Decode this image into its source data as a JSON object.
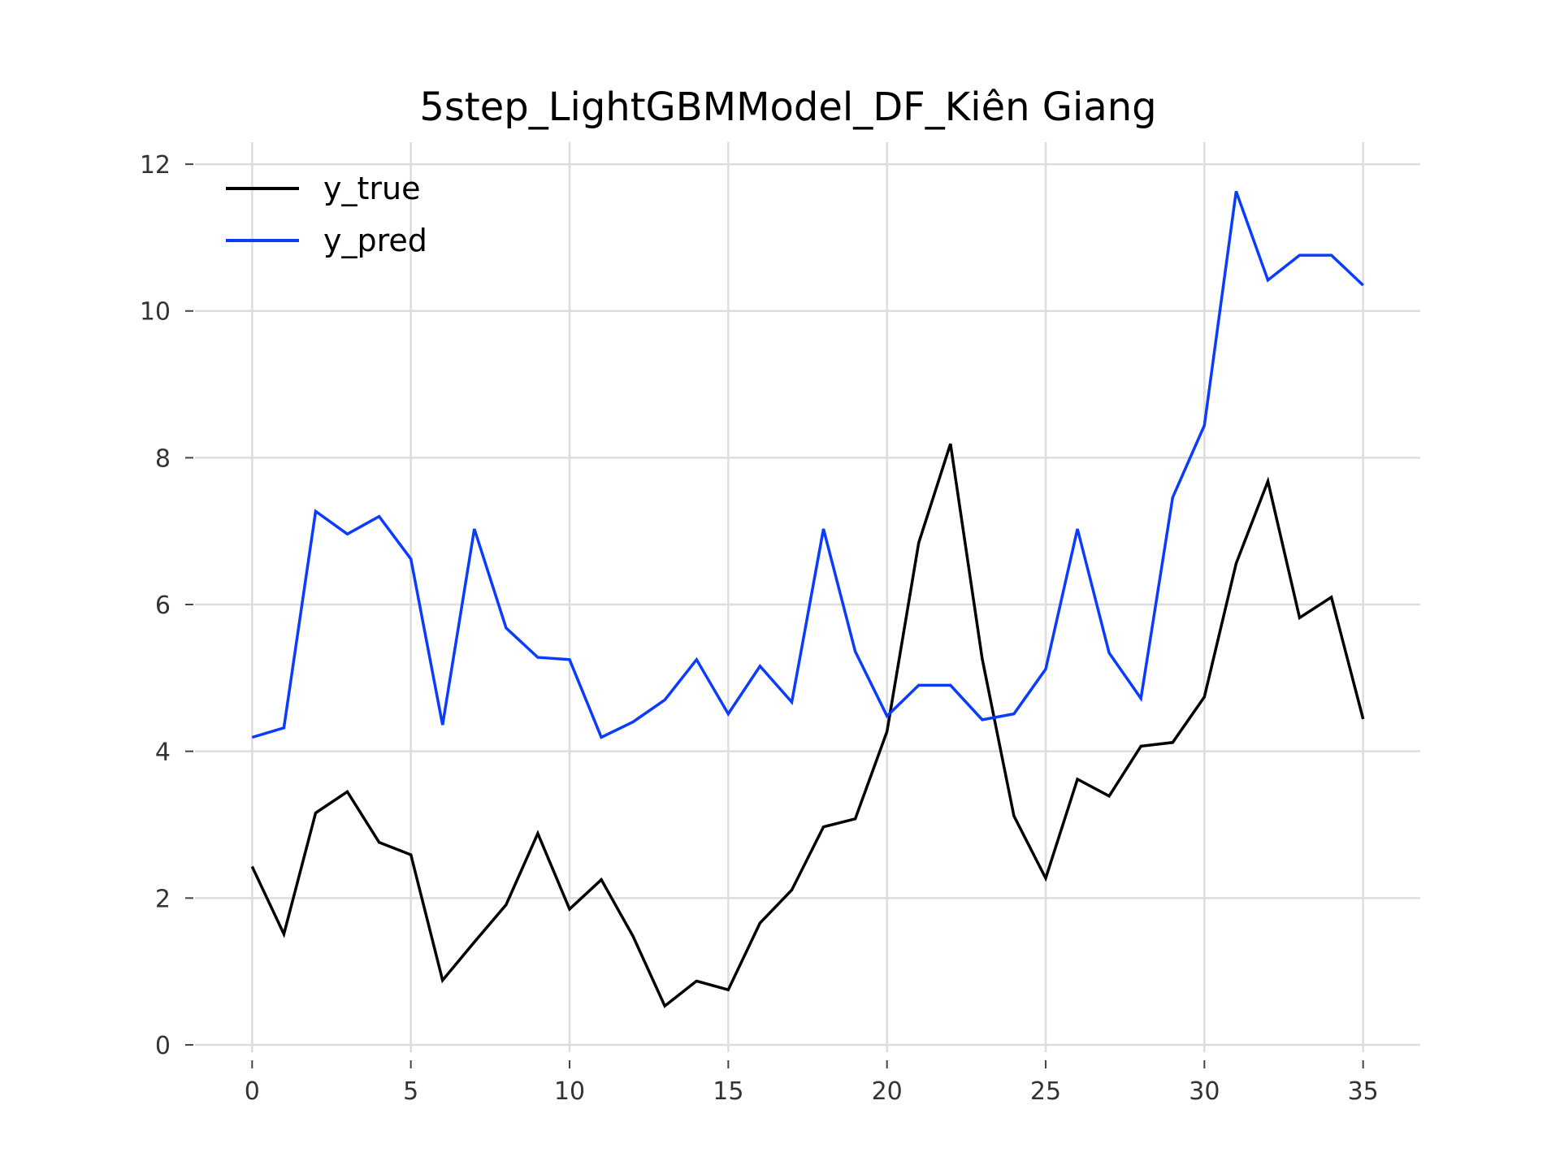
{
  "chart_data": {
    "type": "line",
    "title": "5step_LightGBMModel_DF_Kiên Giang",
    "xlabel": "",
    "ylabel": "",
    "xlim": [
      -1.8,
      36.8
    ],
    "ylim": [
      -0.1,
      12.3
    ],
    "xticks": [
      0,
      5,
      10,
      15,
      20,
      25,
      30,
      35
    ],
    "yticks": [
      0,
      2,
      4,
      6,
      8,
      10,
      12
    ],
    "grid": true,
    "legend_position": "top-left",
    "x": [
      0,
      1,
      2,
      3,
      4,
      5,
      6,
      7,
      8,
      9,
      10,
      11,
      12,
      13,
      14,
      15,
      16,
      17,
      18,
      19,
      20,
      21,
      22,
      23,
      24,
      25,
      26,
      27,
      28,
      29,
      30,
      31,
      32,
      33,
      34,
      35
    ],
    "series": [
      {
        "name": "y_true",
        "color": "#000000",
        "values": [
          2.43,
          1.51,
          3.16,
          3.45,
          2.76,
          2.59,
          0.88,
          1.4,
          1.91,
          2.88,
          1.85,
          2.25,
          1.48,
          0.53,
          0.87,
          0.75,
          1.66,
          2.11,
          2.97,
          3.08,
          4.27,
          6.84,
          8.19,
          5.26,
          3.12,
          2.27,
          3.62,
          3.39,
          4.07,
          4.12,
          4.74,
          6.56,
          7.68,
          5.82,
          6.1,
          4.44
        ]
      },
      {
        "name": "y_pred",
        "color": "#0a3cff",
        "values": [
          4.19,
          4.32,
          7.27,
          6.96,
          7.2,
          6.62,
          4.36,
          7.03,
          5.68,
          5.28,
          5.25,
          4.19,
          4.4,
          4.7,
          5.25,
          4.51,
          5.16,
          4.67,
          7.03,
          5.36,
          4.48,
          4.9,
          4.9,
          4.43,
          4.51,
          5.12,
          7.03,
          5.34,
          4.72,
          7.46,
          8.44,
          11.63,
          10.42,
          10.76,
          10.76,
          10.35
        ]
      }
    ]
  }
}
